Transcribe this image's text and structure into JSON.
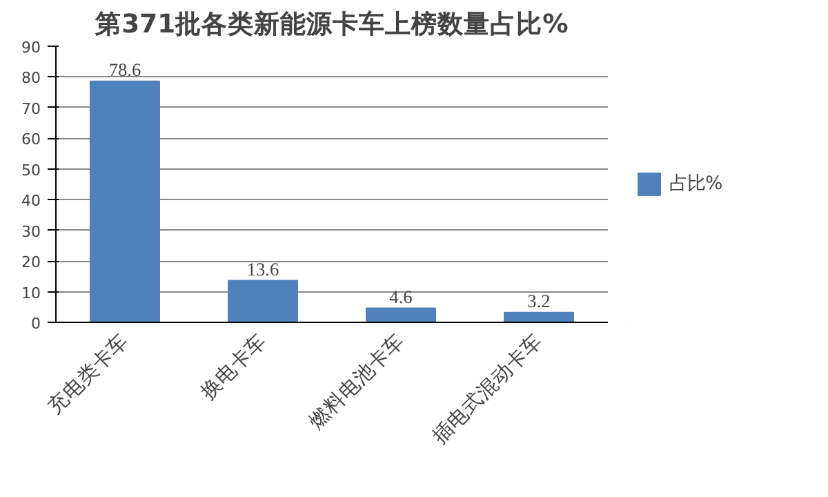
{
  "chart_data": {
    "type": "bar",
    "title": "第371批各类新能源卡车上榜数量占比%",
    "categories": [
      "充电类卡车",
      "换电卡车",
      "燃料电池卡车",
      "插电式混动卡车"
    ],
    "series": [
      {
        "name": "占比%",
        "color": "#4f81bd",
        "values": [
          78.6,
          13.6,
          4.6,
          3.2
        ]
      }
    ],
    "ylim": [
      0,
      90
    ],
    "yticks": [
      0,
      10,
      20,
      30,
      40,
      50,
      60,
      70,
      80,
      90
    ],
    "grid": "y",
    "legend": "right",
    "data_labels": true
  }
}
